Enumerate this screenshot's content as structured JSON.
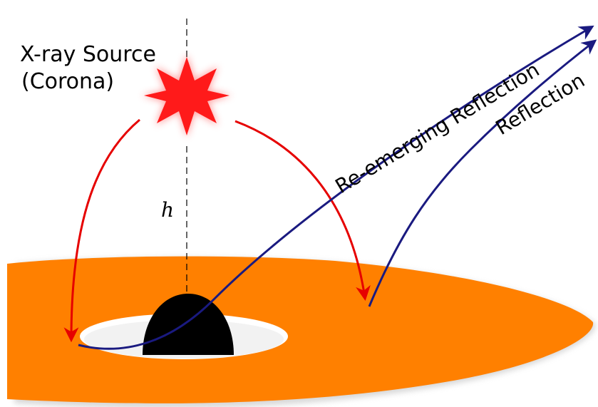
{
  "diagram": {
    "source_label_line1": "X-ray Source",
    "source_label_line2": "(Corona)",
    "height_label": "h",
    "reemerging_label": "Re-emerging Reflection",
    "reflection_label": "Reflection",
    "colors": {
      "disk": "#ff8000",
      "disk_shadow": "#d9d9d9",
      "black_hole": "#000000",
      "source_star": "#ff1a1a",
      "incident_ray": "#e60000",
      "reflected_ray": "#1a1a80",
      "axis_line": "#000000"
    }
  }
}
